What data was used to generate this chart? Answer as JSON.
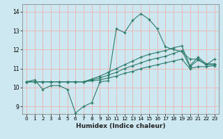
{
  "xlabel": "Humidex (Indice chaleur)",
  "bg_color": "#cde8f0",
  "plot_bg_color": "#cde8f0",
  "grid_color": "#e8b8b8",
  "line_color": "#2d7a6a",
  "xlim": [
    -0.5,
    23.5
  ],
  "ylim": [
    8.6,
    14.4
  ],
  "xticks": [
    0,
    1,
    2,
    3,
    4,
    5,
    6,
    7,
    8,
    9,
    10,
    11,
    12,
    13,
    14,
    15,
    16,
    17,
    18,
    19,
    20,
    21,
    22,
    23
  ],
  "yticks": [
    9,
    10,
    11,
    12,
    13,
    14
  ],
  "line1_y": [
    10.3,
    10.4,
    9.9,
    10.1,
    10.1,
    9.9,
    8.65,
    9.0,
    9.2,
    10.3,
    10.35,
    13.1,
    12.9,
    13.55,
    13.9,
    13.6,
    13.1,
    12.15,
    12.0,
    11.9,
    11.5,
    11.5,
    11.2,
    11.5
  ],
  "line2_y": [
    10.3,
    10.3,
    10.3,
    10.3,
    10.3,
    10.3,
    10.3,
    10.3,
    10.35,
    10.4,
    10.5,
    10.6,
    10.75,
    10.85,
    11.0,
    11.1,
    11.2,
    11.3,
    11.4,
    11.5,
    11.0,
    11.1,
    11.1,
    11.15
  ],
  "line3_y": [
    10.3,
    10.3,
    10.3,
    10.3,
    10.3,
    10.3,
    10.3,
    10.3,
    10.4,
    10.5,
    10.65,
    10.8,
    11.0,
    11.15,
    11.3,
    11.45,
    11.55,
    11.65,
    11.8,
    11.95,
    11.1,
    11.45,
    11.2,
    11.2
  ],
  "line4_y": [
    10.3,
    10.3,
    10.3,
    10.3,
    10.3,
    10.3,
    10.3,
    10.3,
    10.45,
    10.6,
    10.8,
    11.0,
    11.2,
    11.4,
    11.6,
    11.75,
    11.85,
    11.95,
    12.1,
    12.2,
    11.15,
    11.6,
    11.25,
    11.25
  ]
}
